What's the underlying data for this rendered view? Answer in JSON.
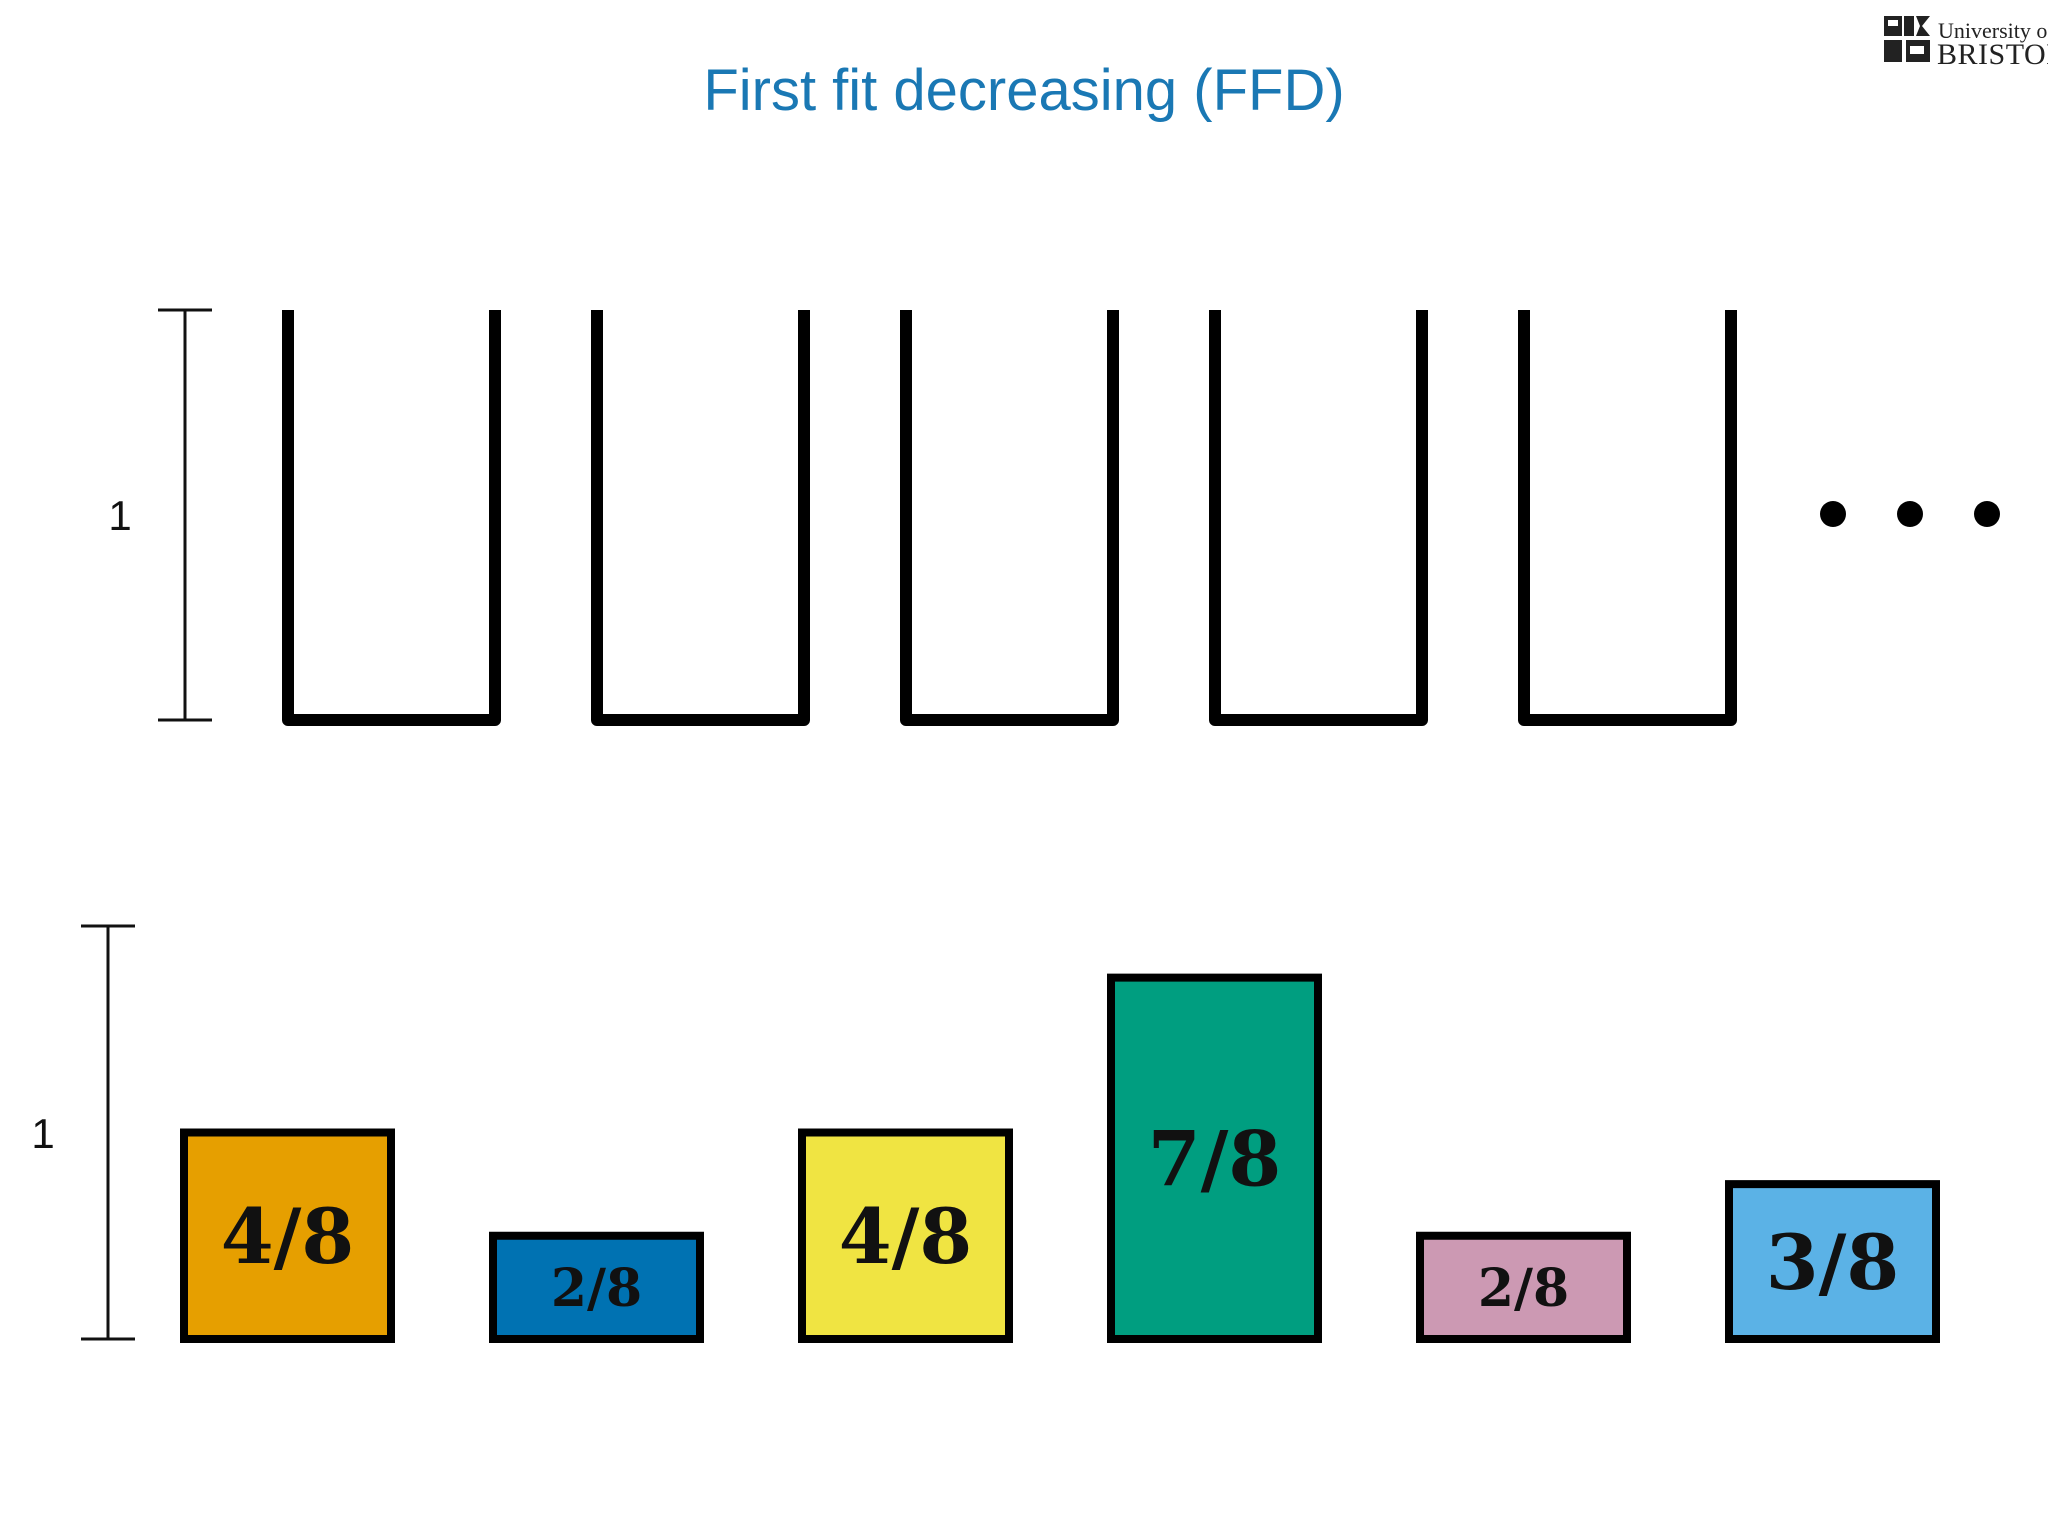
{
  "slide": {
    "title": "First fit decreasing (FFD)"
  },
  "logo": {
    "line1": "University of",
    "line2": "BRISTOL"
  },
  "bins": {
    "count_drawn": 5,
    "capacity_label": "1",
    "continuation": "..."
  },
  "items": {
    "scale_label": "1",
    "list": [
      {
        "label": "4/8",
        "size": 0.5,
        "color": "#E69F00"
      },
      {
        "label": "2/8",
        "size": 0.25,
        "color": "#0072B2"
      },
      {
        "label": "4/8",
        "size": 0.5,
        "color": "#F0E442"
      },
      {
        "label": "7/8",
        "size": 0.875,
        "color": "#009E80"
      },
      {
        "label": "2/8",
        "size": 0.25,
        "color": "#CC99B3"
      },
      {
        "label": "3/8",
        "size": 0.375,
        "color": "#5BB2E6"
      }
    ]
  }
}
